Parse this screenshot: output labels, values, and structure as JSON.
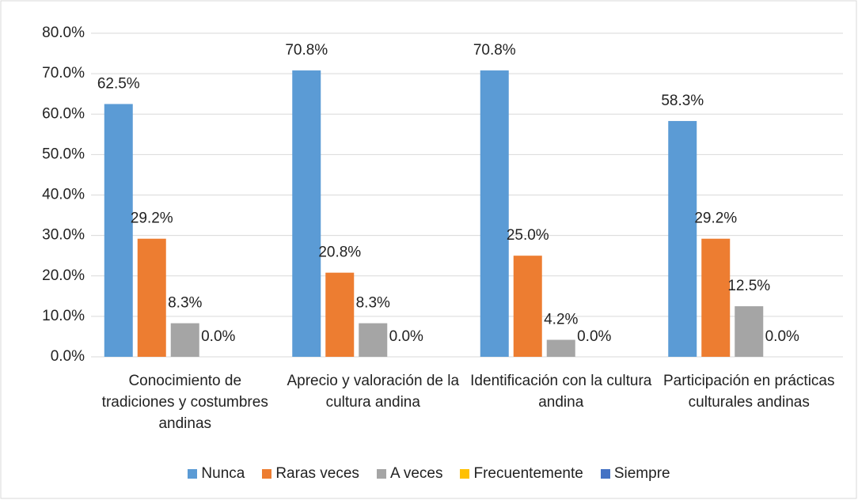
{
  "chart_data": {
    "type": "bar",
    "categories": [
      "Conocimiento de tradiciones y costumbres andinas",
      "Aprecio y valoración de la cultura andina",
      "Identificación con la cultura andina",
      "Participación en prácticas culturales andinas"
    ],
    "series": [
      {
        "name": "Nunca",
        "color": "#5b9bd5",
        "values": [
          62.5,
          70.8,
          70.8,
          58.3
        ],
        "value_labels": [
          "62.5%",
          "70.8%",
          "70.8%",
          "58.3%"
        ]
      },
      {
        "name": "Raras veces",
        "color": "#ed7d31",
        "values": [
          29.2,
          20.8,
          25.0,
          29.2
        ],
        "value_labels": [
          "29.2%",
          "20.8%",
          "25.0%",
          "29.2%"
        ]
      },
      {
        "name": "A veces",
        "color": "#a5a5a5",
        "values": [
          8.3,
          8.3,
          4.2,
          12.5
        ],
        "value_labels": [
          "8.3%",
          "8.3%",
          "4.2%",
          "12.5%"
        ]
      },
      {
        "name": "Frecuentemente",
        "color": "#ffc000",
        "values": [
          0,
          0,
          0,
          0
        ],
        "value_labels": [
          "0.0%",
          "0.0%",
          "0.0%",
          "0.0%"
        ]
      },
      {
        "name": "Siempre",
        "color": "#4472c4",
        "values": [
          null,
          null,
          null,
          null
        ]
      }
    ],
    "ylim": [
      0,
      80
    ],
    "yticks": [
      {
        "value": 0,
        "label": "0.0%"
      },
      {
        "value": 10,
        "label": "10.0%"
      },
      {
        "value": 20,
        "label": "20.0%"
      },
      {
        "value": 30,
        "label": "30.0%"
      },
      {
        "value": 40,
        "label": "40.0%"
      },
      {
        "value": 50,
        "label": "50.0%"
      },
      {
        "value": 60,
        "label": "60.0%"
      },
      {
        "value": 70,
        "label": "70.0%"
      },
      {
        "value": 80,
        "label": "80.0%"
      }
    ],
    "grid": true,
    "legend": "bottom"
  }
}
